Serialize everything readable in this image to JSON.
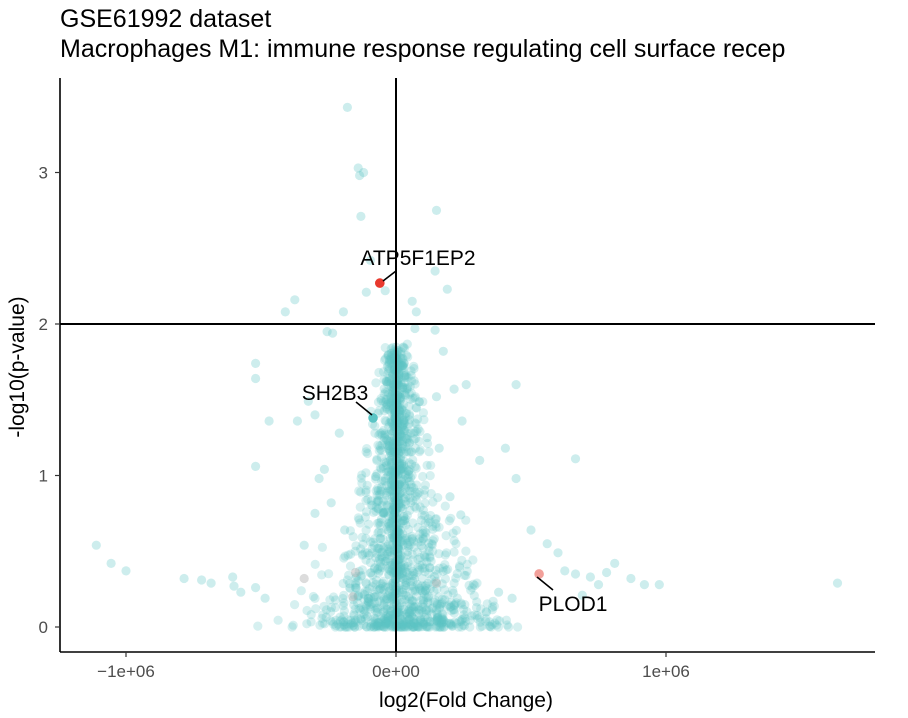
{
  "chart_data": {
    "type": "scatter",
    "title": "GSE61992 dataset",
    "subtitle": "Macrophages M1: immune response regulating cell surface recep",
    "xlabel": "log2(Fold Change)",
    "ylabel": "-log10(p-value)",
    "xlim": [
      -1250000,
      1780000
    ],
    "ylim": [
      -0.17,
      3.6
    ],
    "x_ticks": [
      -1000000,
      0,
      1000000
    ],
    "x_tick_labels": [
      "−1e+06",
      "0e+00",
      "1e+06"
    ],
    "y_ticks": [
      0,
      1,
      2,
      3
    ],
    "y_tick_labels": [
      "0",
      "1",
      "2",
      "3"
    ],
    "hline": 2,
    "vline": 0,
    "grid": false,
    "point_color": "#5bc5c5",
    "point_opacity": 0.25,
    "highlight_color": "#e8392d",
    "highlighted_points": [
      {
        "name": "ATP5F1EP2",
        "x": -60000,
        "y": 2.27,
        "color": "#e8392d"
      },
      {
        "name": "SH2B3",
        "x": -85000,
        "y": 1.38,
        "color": "#5bc5c5"
      },
      {
        "name": "PLOD1",
        "x": 530000,
        "y": 0.35,
        "color": "#f2a09a"
      }
    ],
    "outlier_points": [
      [
        -1110000,
        0.54
      ],
      [
        -1055000,
        0.42
      ],
      [
        -1000000,
        0.37
      ],
      [
        -785000,
        0.32
      ],
      [
        -720000,
        0.31
      ],
      [
        -685000,
        0.29
      ],
      [
        -605000,
        0.33
      ],
      [
        -600000,
        0.27
      ],
      [
        -575000,
        0.23
      ],
      [
        -520000,
        0.26
      ],
      [
        -485000,
        0.19
      ],
      [
        -520000,
        1.74
      ],
      [
        -520000,
        1.64
      ],
      [
        -470000,
        1.36
      ],
      [
        -520000,
        1.06
      ],
      [
        -410000,
        2.08
      ],
      [
        -375000,
        2.16
      ],
      [
        -365000,
        1.36
      ],
      [
        -325000,
        1.49
      ],
      [
        -300000,
        1.4
      ],
      [
        -285000,
        0.98
      ],
      [
        -265000,
        1.04
      ],
      [
        -255000,
        1.95
      ],
      [
        -235000,
        1.94
      ],
      [
        -210000,
        1.28
      ],
      [
        -195000,
        2.08
      ],
      [
        -180000,
        3.43
      ],
      [
        -140000,
        3.03
      ],
      [
        -135000,
        2.98
      ],
      [
        -120000,
        3.0
      ],
      [
        -110000,
        2.21
      ],
      [
        -130000,
        2.71
      ],
      [
        -95000,
        2.42
      ],
      [
        -40000,
        2.22
      ],
      [
        60000,
        2.15
      ],
      [
        75000,
        2.08
      ],
      [
        70000,
        1.97
      ],
      [
        145000,
        2.35
      ],
      [
        115000,
        1.25
      ],
      [
        150000,
        2.75
      ],
      [
        190000,
        2.23
      ],
      [
        175000,
        1.82
      ],
      [
        145000,
        1.96
      ],
      [
        150000,
        1.52
      ],
      [
        260000,
        1.6
      ],
      [
        215000,
        1.57
      ],
      [
        245000,
        1.36
      ],
      [
        310000,
        1.1
      ],
      [
        405000,
        1.18
      ],
      [
        445000,
        0.98
      ],
      [
        500000,
        0.64
      ],
      [
        560000,
        0.55
      ],
      [
        600000,
        0.49
      ],
      [
        625000,
        0.37
      ],
      [
        665000,
        0.35
      ],
      [
        720000,
        0.33
      ],
      [
        750000,
        0.28
      ],
      [
        780000,
        0.36
      ],
      [
        810000,
        0.42
      ],
      [
        870000,
        0.32
      ],
      [
        920000,
        0.28
      ],
      [
        975000,
        0.28
      ],
      [
        690000,
        0.21
      ],
      [
        665000,
        1.11
      ],
      [
        445000,
        1.6
      ],
      [
        1635000,
        0.29
      ],
      [
        430000,
        0.19
      ],
      [
        380000,
        0.23
      ],
      [
        200000,
        0.86
      ],
      [
        240000,
        0.74
      ],
      [
        -240000,
        0.82
      ],
      [
        -300000,
        0.75
      ],
      [
        -190000,
        0.64
      ],
      [
        160000,
        1.18
      ],
      [
        -340000,
        0.54
      ]
    ],
    "dense_cloud": {
      "n_points": 1400,
      "note": "bulk of genes near x=0 with y from 0 to ~1.8"
    }
  }
}
